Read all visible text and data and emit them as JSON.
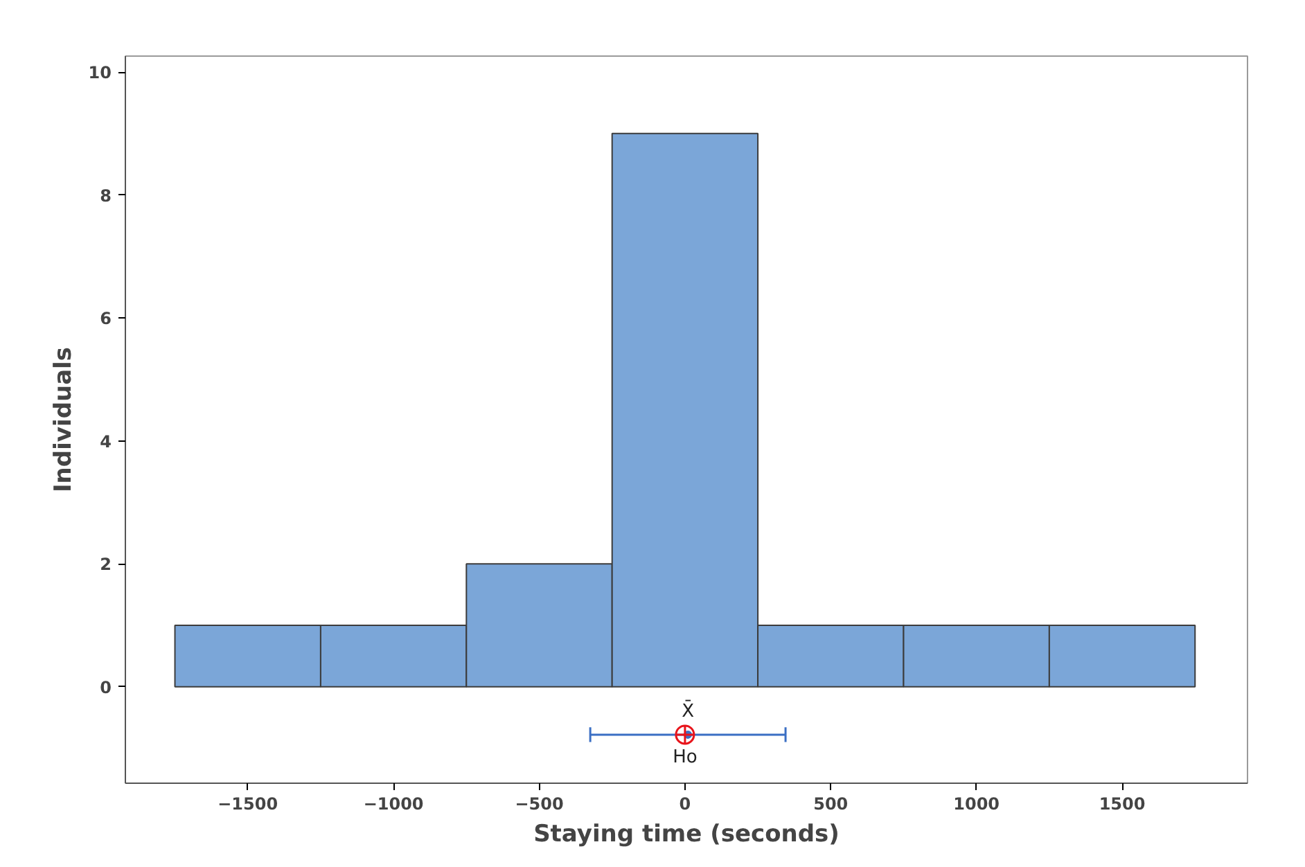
{
  "chart_data": {
    "type": "histogram",
    "xlabel": "Staying time (seconds)",
    "ylabel": "Individuals",
    "bins": [
      -1750,
      -1250,
      -750,
      -250,
      250,
      750,
      1250,
      1750
    ],
    "xlim": [
      -1920,
      1930
    ],
    "ylim": [
      -1.57,
      10.26
    ],
    "xticks": [
      -1500,
      -1000,
      -500,
      0,
      500,
      1000,
      1500
    ],
    "yticks": [
      0,
      2,
      4,
      6,
      8,
      10
    ],
    "grid": false,
    "legend": false,
    "series": [
      {
        "color": "#7ba6d8",
        "values": [
          1,
          1,
          2,
          9,
          1,
          1,
          1
        ]
      },
      {
        "type": "scatter",
        "color": "#3b6fc4",
        "marker": "circle",
        "x": [
          10
        ],
        "values": [
          -0.78
        ],
        "xerrors": [
          [
            -325,
            345
          ]
        ]
      },
      {
        "type": "scatter",
        "color": "#e8141b",
        "marker": "circle",
        "x": [
          0
        ],
        "values": [
          -0.78
        ]
      }
    ],
    "annotations": [
      "X̄",
      "Ho"
    ]
  }
}
